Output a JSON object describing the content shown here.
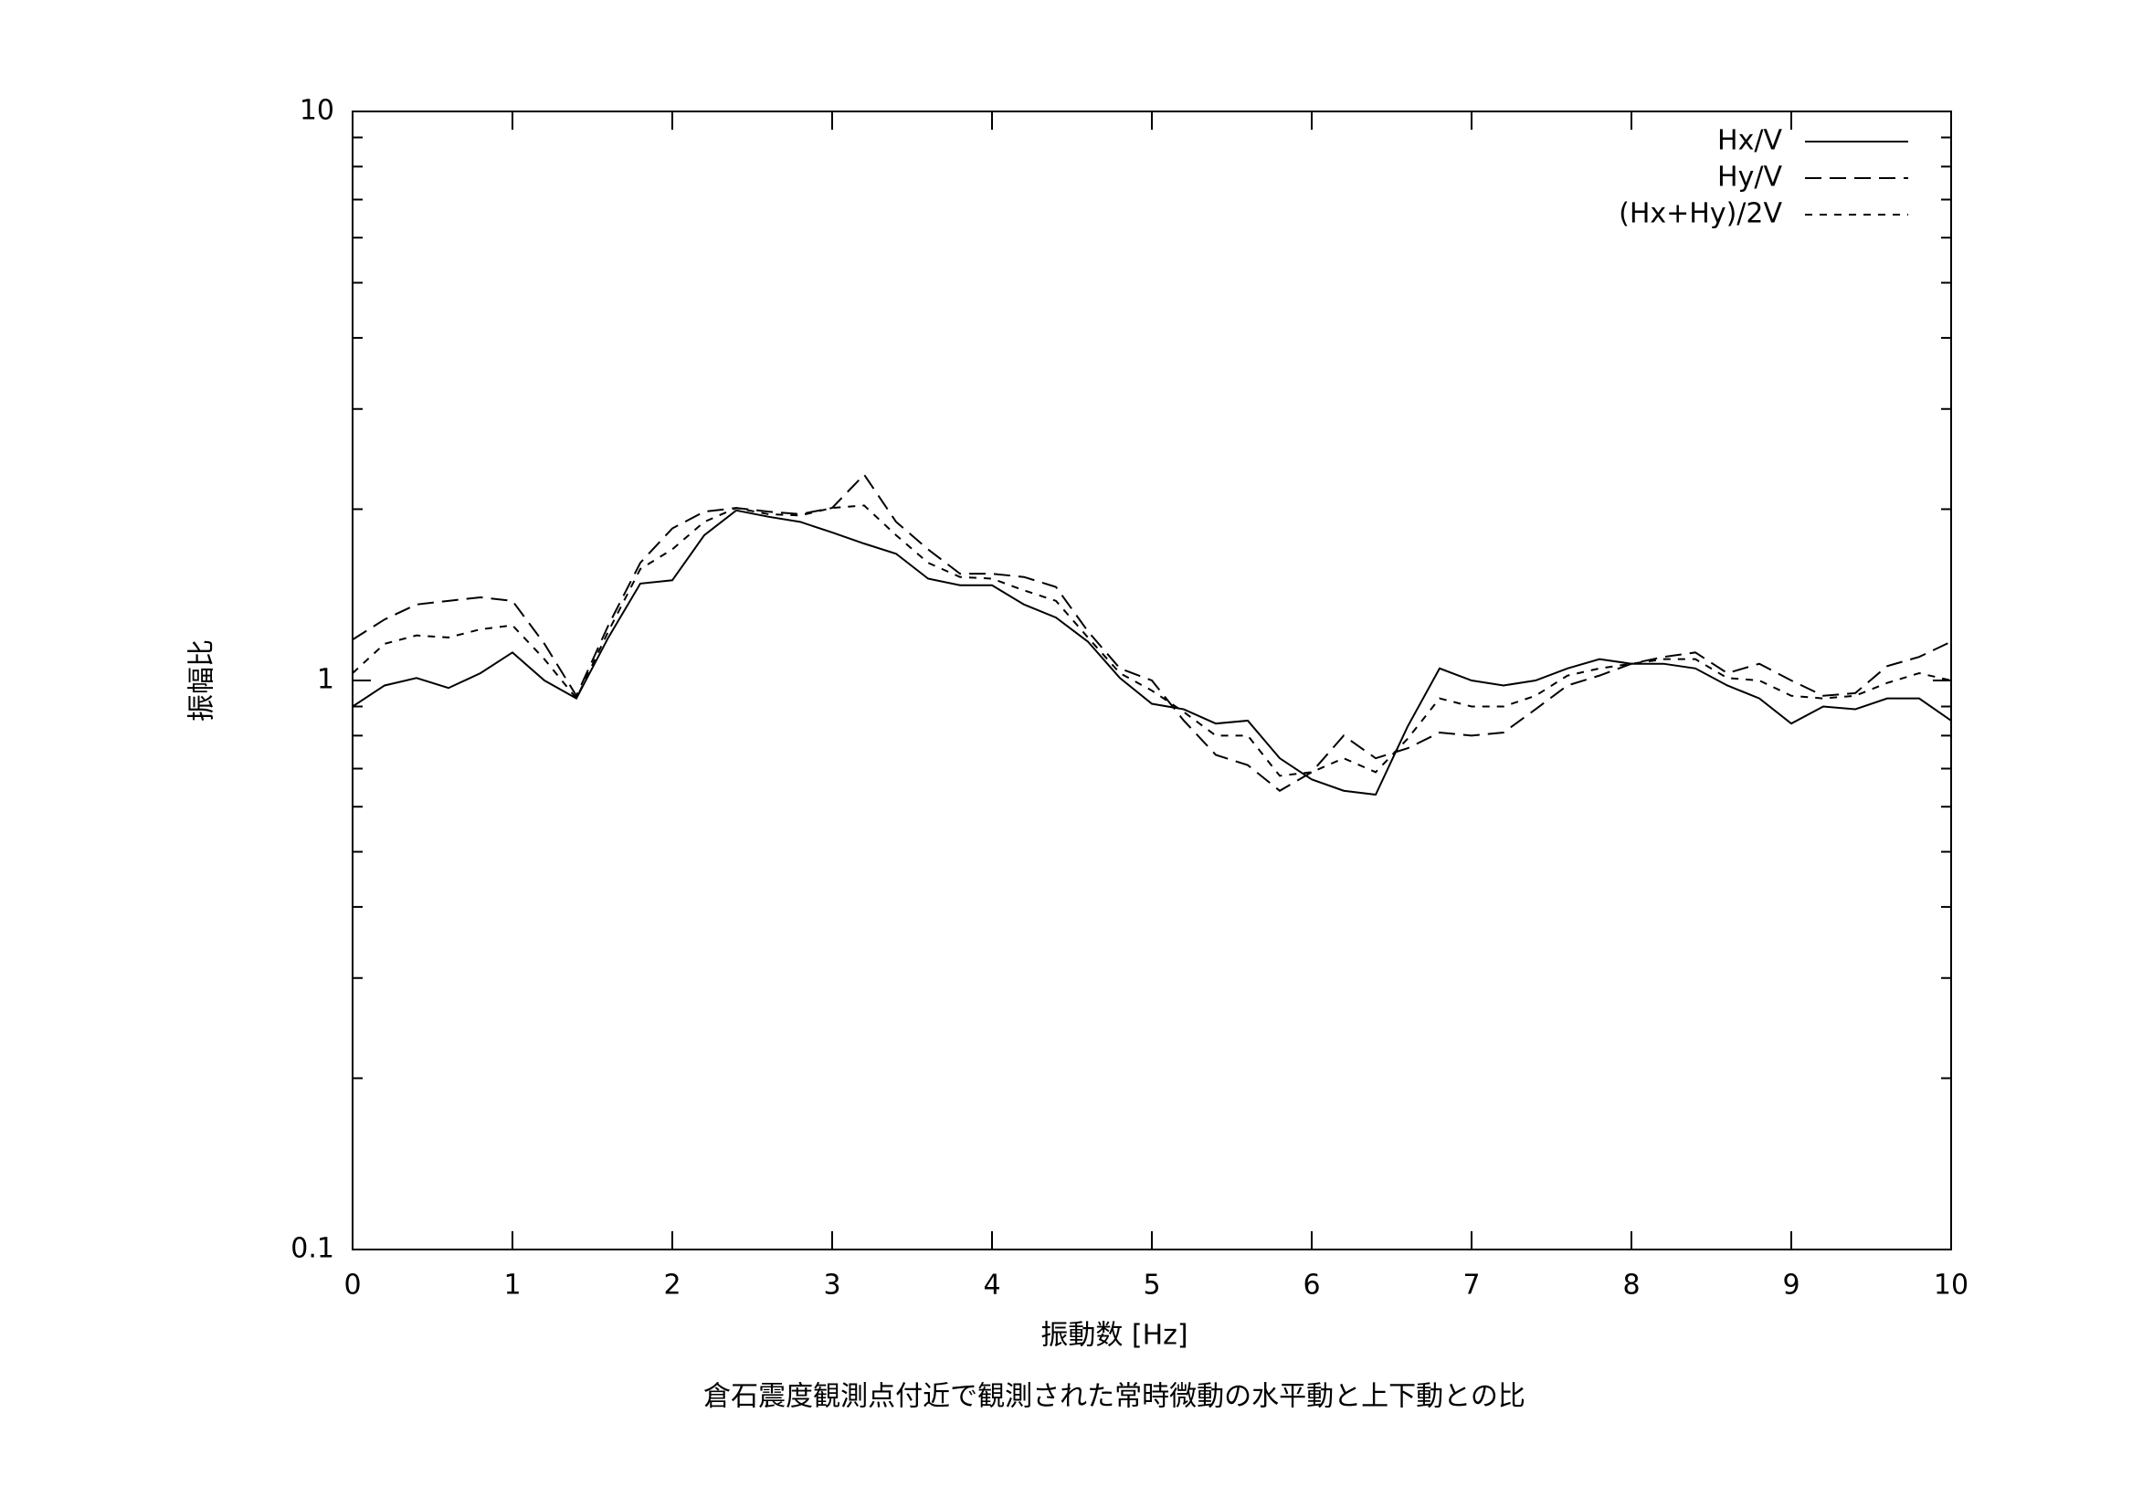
{
  "chart_data": {
    "type": "line",
    "title": "倉石震度観測点付近で観測された常時微動の水平動と上下動との比",
    "xlabel": "振動数 [Hz]",
    "ylabel": "振幅比",
    "log_y": true,
    "legend": "top-right",
    "xlim": [
      0,
      10
    ],
    "xticks": [
      0,
      1,
      2,
      3,
      4,
      5,
      6,
      7,
      8,
      9,
      10
    ],
    "ylim": [
      0.1,
      10
    ],
    "yticks": [
      0.1,
      1,
      10
    ],
    "yminor_ticks": [
      0.2,
      0.3,
      0.4,
      0.5,
      0.6,
      0.7,
      0.8,
      0.9,
      2,
      3,
      4,
      5,
      6,
      7,
      8,
      9
    ],
    "x": [
      0,
      0.2,
      0.4,
      0.6,
      0.8,
      1,
      1.2,
      1.4,
      1.6,
      1.8,
      2,
      2.2,
      2.4,
      2.6,
      2.8,
      3,
      3.2,
      3.4,
      3.6,
      3.8,
      4,
      4.2,
      4.4,
      4.6,
      4.8,
      5,
      5.2,
      5.4,
      5.6,
      5.8,
      6,
      6.2,
      6.4,
      6.6,
      6.8,
      7,
      7.2,
      7.4,
      7.6,
      7.8,
      8,
      8.2,
      8.4,
      8.6,
      8.8,
      9,
      9.2,
      9.4,
      9.6,
      9.8,
      10
    ],
    "series": [
      {
        "name": "Hx/V",
        "color": "#000000",
        "dash": "solid",
        "values": [
          0.9,
          0.98,
          1.01,
          0.97,
          1.03,
          1.12,
          1.0,
          0.93,
          1.19,
          1.48,
          1.5,
          1.8,
          1.99,
          1.94,
          1.9,
          1.82,
          1.74,
          1.67,
          1.51,
          1.47,
          1.47,
          1.36,
          1.29,
          1.17,
          1.01,
          0.91,
          0.89,
          0.84,
          0.85,
          0.73,
          0.67,
          0.64,
          0.63,
          0.83,
          1.05,
          1.0,
          0.98,
          1.0,
          1.05,
          1.09,
          1.07,
          1.07,
          1.05,
          0.98,
          0.93,
          0.84,
          0.9,
          0.89,
          0.93,
          0.93,
          0.85
        ]
      },
      {
        "name": "Hy/V",
        "color": "#000000",
        "dash": "long",
        "values": [
          1.18,
          1.28,
          1.36,
          1.38,
          1.4,
          1.38,
          1.16,
          0.94,
          1.25,
          1.61,
          1.85,
          1.98,
          2.01,
          1.98,
          1.96,
          2.01,
          2.3,
          1.9,
          1.7,
          1.54,
          1.54,
          1.52,
          1.46,
          1.22,
          1.05,
          1.0,
          0.85,
          0.74,
          0.71,
          0.64,
          0.69,
          0.8,
          0.73,
          0.76,
          0.81,
          0.8,
          0.81,
          0.89,
          0.98,
          1.02,
          1.07,
          1.1,
          1.12,
          1.03,
          1.07,
          1.0,
          0.94,
          0.95,
          1.06,
          1.1,
          1.17
        ]
      },
      {
        "name": "(Hx+Hy)/2V",
        "color": "#000000",
        "dash": "short",
        "values": [
          1.03,
          1.16,
          1.2,
          1.19,
          1.23,
          1.25,
          1.09,
          0.93,
          1.22,
          1.57,
          1.7,
          1.9,
          2.01,
          1.96,
          1.95,
          2.01,
          2.03,
          1.8,
          1.61,
          1.52,
          1.51,
          1.44,
          1.38,
          1.19,
          1.03,
          0.96,
          0.88,
          0.8,
          0.8,
          0.68,
          0.69,
          0.73,
          0.69,
          0.79,
          0.93,
          0.9,
          0.9,
          0.94,
          1.02,
          1.05,
          1.07,
          1.09,
          1.09,
          1.01,
          1.0,
          0.94,
          0.93,
          0.94,
          0.99,
          1.03,
          1.0
        ]
      }
    ]
  }
}
